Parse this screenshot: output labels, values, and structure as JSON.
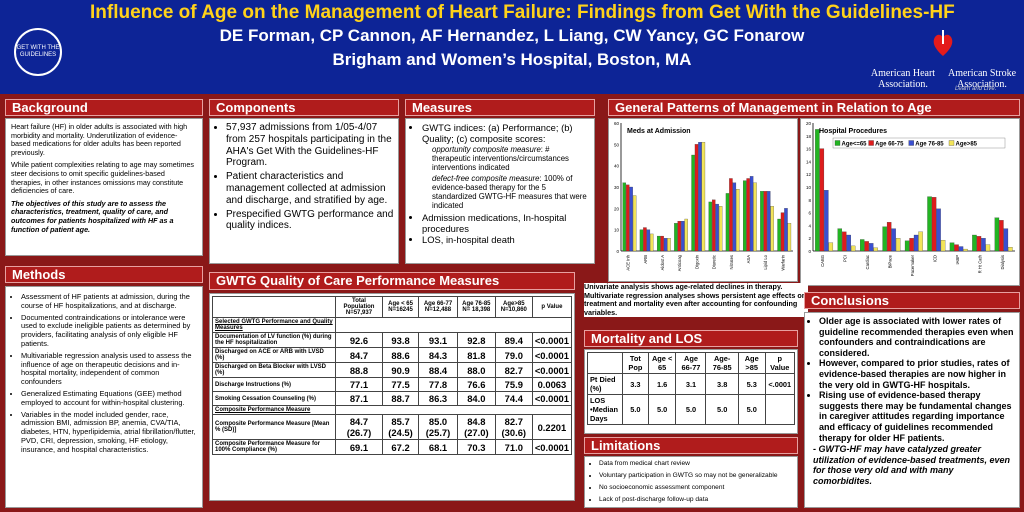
{
  "header": {
    "title": "Influence of Age on the Management of Heart Failure: Findings from Get With the Guidelines-HF",
    "authors": "DE Forman, CP Cannon,  AF Hernandez, L Liang, CW Yancy, GC Fonarow",
    "institution": "Brigham and Women’s Hospital, Boston, MA",
    "logo_text": "GET WITH THE GUIDELINES",
    "aha_left": [
      "American Heart",
      "Association."
    ],
    "aha_right": [
      "American Stroke",
      "Association."
    ],
    "tagline": "Learn and Live."
  },
  "background": {
    "heading": "Background",
    "p1": "Heart failure (HF) in older adults is associated with high morbidity and mortality. Underutilization of evidence-based medications for older adults has been reported previously.",
    "p2": "While patient complexities relating to age may sometimes steer decisions to omit specific guidelines-based therapies, in other instances omissions may constitute deficiencies of care.",
    "p3": "The objectives of this study are to assess the characteristics, treatment, quality of care, and outcomes for patients hospitalized with HF as a function of patient age."
  },
  "components": {
    "heading": "Components",
    "items": [
      "57,937 admissions from 1/05-4/07 from 257 hospitals participating in the AHA's Get With the Guidelines-HF Program.",
      "Patient characteristics and management collected at admission and discharge, and stratified by age.",
      "Prespecified GWTG performance and quality indices."
    ]
  },
  "measures": {
    "heading": "Measures",
    "item1": "GWTG indices: (a) Performance; (b) Quality; (c) composite scores:",
    "sub1_title": "opportunity composite measure",
    "sub1_text": ": # therapeutic interventions/circumstances interventions indicated",
    "sub2_title": "defect-free composite measure",
    "sub2_text": ": 100% of evidence-based therapy for the 5 standardized GWTG-HF measures that were indicated",
    "item2": "Admission medications, In-hospital procedures",
    "item3": "LOS, in-hospital death"
  },
  "patterns": {
    "heading": "General Patterns of Management in Relation to Age"
  },
  "methods": {
    "heading": "Methods",
    "items": [
      "Assessment of HF patients at admission, during the course of HF hospitalizations, and at discharge.",
      "Documented contraindications or intolerance were used to exclude ineligible patients as determined by providers, facilitating analysis of only eligible HF patients.",
      " Multivariable regression analysis used to assess the influence of age on therapeutic decisions and in-hospital mortality, independent of common confounders",
      "Generalized Estimating Equations (GEE) method employed to account for within-hospital clustering.",
      "Variables in the model included gender, race, admission BMI, admission BP, anemia, CVA/TIA, diabetes, HTN, hyperlipidemia, atrial fibrillation/flutter, PVD, CRI, depression, smoking, HF etiology, insurance, and hospital characteristics."
    ]
  },
  "gwtg": {
    "heading": "GWTG Quality of Care Performance Measures",
    "columns": [
      "Total Population N=57,937",
      "Age < 65 N=16245",
      "Age 66-77 N=12,488",
      "Age 76-85 N= 18,398",
      "Age>85 N=10,860",
      "p Value"
    ],
    "sec1": "Selected GWTG Performance and Quality Measures",
    "rows1": [
      {
        "label": "Documentation of LV function (%) during the HF hospitalization",
        "v": [
          "92.6",
          "93.8",
          "93.1",
          "92.8",
          "89.4",
          "<0.0001"
        ]
      },
      {
        "label": "Discharged on ACE or ARB with LVSD (%)",
        "v": [
          "84.7",
          "88.6",
          "84.3",
          "81.8",
          "79.0",
          "<0.0001"
        ]
      },
      {
        "label": "Discharged on Beta Blocker with LVSD (%)",
        "v": [
          "88.8",
          "90.9",
          "88.4",
          "88.0",
          "82.7",
          "<0.0001"
        ]
      },
      {
        "label": "Discharge Instructions (%)",
        "v": [
          "77.1",
          "77.5",
          "77.8",
          "76.6",
          "75.9",
          "0.0063"
        ]
      },
      {
        "label": "Smoking Cessation Counseling (%)",
        "v": [
          "87.1",
          "88.7",
          "86.3",
          "84.0",
          "74.4",
          "<0.0001"
        ]
      }
    ],
    "sec2": "Composite Performance Measure",
    "rows2": [
      {
        "label": "Composite Performance Measure [Mean % (SD)]",
        "v": [
          "84.7",
          "85.7",
          "85.0",
          "84.8",
          "82.7",
          "0.2201"
        ],
        "sd": [
          "(26.7)",
          "(24.5)",
          "(25.7)",
          "(27.0)",
          "(30.6)"
        ]
      },
      {
        "label": "Composite Performance Measure for 100% Compliance (%)",
        "v": [
          "69.1",
          "67.2",
          "68.1",
          "70.3",
          "71.0",
          "<0.0001"
        ]
      }
    ]
  },
  "univariate": "Univariate analysis shows age-related declines in therapy. Multivariate regression analyses shows persistent age effects on treatment and mortality even after accounting for confounding variables.",
  "mortality": {
    "heading": "Mortality and LOS",
    "columns": [
      "Tot Pop",
      "Age < 65",
      "Age 66-77",
      "Age- 76-85",
      "Age >85",
      "p Value"
    ],
    "row1": {
      "label": "Pt Died (%)",
      "v": [
        "3.3",
        "1.6",
        "3.1",
        "3.8",
        "5.3",
        "<.0001"
      ]
    },
    "row2": {
      "label": "LOS",
      "label2": "•Median Days",
      "v": [
        "5.0",
        "5.0",
        "5.0",
        "5.0",
        "5.0",
        ""
      ]
    }
  },
  "limitations": {
    "heading": "Limitations",
    "items": [
      "Data from medical chart review",
      "Voluntary participation in GWTG so may not be generalizable",
      "No socioeconomic assessment component",
      "Lack of post-discharge follow-up data"
    ]
  },
  "conclusions": {
    "heading": "Conclusions",
    "items": [
      "Older age is associated with lower rates of guideline recommended therapies even when confounders and contraindications are considered.",
      "However, compared to prior studies, rates of evidence-based therapies are now higher in the very old in GWTG-HF hospitals.",
      "Rising use of evidence-based therapy suggests there may be fundamental changes in caregiver attitudes regarding importance and efficacy of guidelines recommended therapy for older HF patients."
    ],
    "italic": "- GWTG-HF may have catalyzed greater utilization of evidence-based treatments, even for those very old and with many comorbidites."
  },
  "chart_data": [
    {
      "type": "bar",
      "title": "Meds at Admission",
      "categories": [
        "ACE Inh",
        "ARB",
        "Aldost A",
        "Anticoag",
        "Digoxin",
        "Diuretic",
        "Nitrates",
        "ASA",
        "Lipid Lo",
        "Warfarin"
      ],
      "ylim": [
        0,
        60
      ],
      "yticks": [
        0,
        10,
        20,
        30,
        40,
        50,
        60
      ],
      "series": [
        {
          "name": "Age<=65",
          "color": "#22b522",
          "values": [
            32,
            10,
            7,
            13,
            45,
            23,
            27,
            33,
            28,
            15
          ]
        },
        {
          "name": "Age 66-75",
          "color": "#dd1c1c",
          "values": [
            31,
            11,
            7,
            14,
            50,
            24,
            34,
            34,
            28,
            18
          ]
        },
        {
          "name": "Age 76-85",
          "color": "#3a4fd0",
          "values": [
            30,
            10,
            6,
            14,
            51,
            22,
            32,
            35,
            28,
            20
          ]
        },
        {
          "name": "Age>85",
          "color": "#f2e45a",
          "values": [
            26,
            8,
            6,
            15,
            51,
            21,
            29,
            32,
            21,
            13
          ]
        }
      ]
    },
    {
      "type": "bar",
      "title": "Hospital Procedures",
      "categories": [
        "CABG",
        "PCI",
        "Cardiac",
        "BiPace",
        "Pacemaker",
        "ICD",
        "IABP",
        "R Ht Cath",
        "Dialysis"
      ],
      "ylim": [
        0,
        20
      ],
      "yticks": [
        0,
        2,
        4,
        6,
        8,
        10,
        12,
        14,
        16,
        18,
        20
      ],
      "legend": "top",
      "series": [
        {
          "name": "Age<=65",
          "color": "#22b522",
          "values": [
            19,
            3.5,
            1.8,
            3.8,
            1.6,
            8.5,
            1.3,
            2.5,
            5.2
          ]
        },
        {
          "name": "Age 66-75",
          "color": "#dd1c1c",
          "values": [
            16,
            3,
            1.5,
            4.5,
            2,
            8.4,
            1,
            2.3,
            4.8
          ]
        },
        {
          "name": "Age 76-85",
          "color": "#3a4fd0",
          "values": [
            9.5,
            2.5,
            1.2,
            3.5,
            2.5,
            6.6,
            0.7,
            2,
            3.5
          ]
        },
        {
          "name": "Age>85",
          "color": "#f2e45a",
          "values": [
            1.3,
            0.8,
            0.5,
            2,
            3,
            1.7,
            0.3,
            1,
            0.6
          ]
        }
      ]
    }
  ]
}
